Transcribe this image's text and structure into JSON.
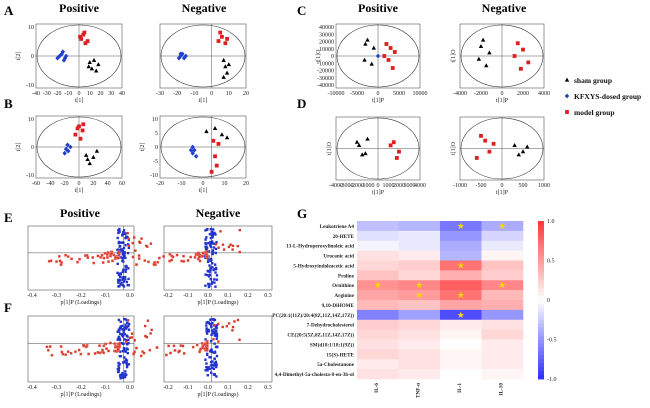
{
  "panel_labels": [
    "A",
    "B",
    "C",
    "D",
    "E",
    "F",
    "G"
  ],
  "group_titles": {
    "positive": "Positive",
    "negative": "Negative"
  },
  "legend": {
    "entries": [
      {
        "label": "sham group",
        "color": "#000000",
        "shape": "triangle"
      },
      {
        "label": "KFXYS-dosed group",
        "color": "#1f3fcc",
        "shape": "diamond"
      },
      {
        "label": "model group",
        "color": "#dd1f1f",
        "shape": "square"
      }
    ]
  },
  "chart_data": [
    {
      "type": "scatter",
      "panel": "A",
      "title": "Positive",
      "xlabel": "t[1]",
      "ylabel": "t[2]",
      "xlim": [
        -40,
        40
      ],
      "ylim": [
        -15,
        15
      ],
      "xticks": [
        "-40",
        "-30",
        "-20",
        "-10",
        "0",
        "10",
        "20",
        "30",
        "40"
      ],
      "yticks": [
        "10",
        "0",
        "-10"
      ],
      "series": [
        {
          "name": "sham group",
          "points": [
            [
              10,
              -3
            ],
            [
              12,
              -6
            ],
            [
              14,
              -2
            ],
            [
              16,
              -7
            ],
            [
              9,
              -5
            ],
            [
              18,
              -4
            ]
          ]
        },
        {
          "name": "KFXYS-dosed group",
          "points": [
            [
              -20,
              -1
            ],
            [
              -18,
              0
            ],
            [
              -16,
              1
            ],
            [
              -14,
              -2
            ],
            [
              -12,
              0
            ],
            [
              -15,
              2
            ],
            [
              -13,
              -1
            ]
          ]
        },
        {
          "name": "model group",
          "points": [
            [
              2,
              8
            ],
            [
              4,
              10
            ],
            [
              6,
              6
            ],
            [
              5,
              11
            ],
            [
              8,
              7
            ],
            [
              1,
              9
            ]
          ]
        }
      ]
    },
    {
      "type": "scatter",
      "panel": "A",
      "title": "Negative",
      "xlabel": "t[1]",
      "ylabel": "",
      "xlim": [
        -30,
        20
      ],
      "ylim": [
        -15,
        15
      ],
      "xticks": [
        "-30",
        "-20",
        "-10",
        "0",
        "10",
        "20"
      ],
      "yticks": [],
      "series": [
        {
          "name": "sham group",
          "points": [
            [
              7,
              -2
            ],
            [
              8,
              -5
            ],
            [
              9,
              -8
            ],
            [
              10,
              -4
            ],
            [
              7,
              -10
            ]
          ]
        },
        {
          "name": "KFXYS-dosed group",
          "points": [
            [
              -19,
              -1
            ],
            [
              -18,
              0
            ],
            [
              -17,
              1
            ],
            [
              -16,
              -1
            ],
            [
              -15,
              0
            ],
            [
              -18,
              1
            ]
          ]
        },
        {
          "name": "model group",
          "points": [
            [
              4,
              7
            ],
            [
              6,
              9
            ],
            [
              8,
              6
            ],
            [
              5,
              11
            ],
            [
              9,
              8
            ]
          ]
        }
      ]
    },
    {
      "type": "scatter",
      "panel": "B",
      "title": "",
      "xlabel": "t[1]",
      "ylabel": "t[2]",
      "xlim": [
        -60,
        60
      ],
      "ylim": [
        -15,
        15
      ],
      "xticks": [
        "-60",
        "-40",
        "-20",
        "0",
        "20",
        "40",
        "60"
      ],
      "yticks": [
        "10",
        "0",
        "-10"
      ],
      "series": [
        {
          "name": "sham group",
          "points": [
            [
              10,
              -4
            ],
            [
              15,
              -8
            ],
            [
              20,
              -5
            ],
            [
              25,
              -2
            ],
            [
              12,
              -6
            ]
          ]
        },
        {
          "name": "KFXYS-dosed group",
          "points": [
            [
              -20,
              -3
            ],
            [
              -18,
              -1
            ],
            [
              -15,
              -2
            ],
            [
              -12,
              0
            ],
            [
              -16,
              1
            ]
          ]
        },
        {
          "name": "model group",
          "points": [
            [
              -5,
              6
            ],
            [
              0,
              10
            ],
            [
              5,
              8
            ],
            [
              2,
              4
            ],
            [
              -2,
              9
            ],
            [
              6,
              11
            ]
          ]
        }
      ]
    },
    {
      "type": "scatter",
      "panel": "B",
      "title": "",
      "xlabel": "t[1]",
      "ylabel": "t[2]",
      "xlim": [
        -30,
        20
      ],
      "ylim": [
        -10,
        10
      ],
      "xticks": [
        "-20",
        "-10",
        "0",
        "10",
        "20"
      ],
      "yticks": [
        "10",
        "5",
        "0",
        "-5",
        "-10"
      ],
      "series": [
        {
          "name": "sham group",
          "points": [
            [
              -3,
              5
            ],
            [
              2,
              6
            ],
            [
              6,
              4
            ],
            [
              9,
              3
            ]
          ]
        },
        {
          "name": "KFXYS-dosed group",
          "points": [
            [
              -12,
              -1
            ],
            [
              -11,
              -2
            ],
            [
              -10,
              -1
            ],
            [
              -9,
              -3
            ],
            [
              -11,
              0
            ]
          ]
        },
        {
          "name": "model group",
          "points": [
            [
              1,
              2
            ],
            [
              2,
              -3
            ],
            [
              3,
              -6
            ],
            [
              0,
              -8
            ],
            [
              4,
              1
            ]
          ]
        }
      ]
    },
    {
      "type": "scatter",
      "panel": "C",
      "title": "Positive",
      "xlabel": "t[1]P",
      "ylabel": "t[1]O",
      "xlim": [
        -10000,
        10000
      ],
      "ylim": [
        -40000,
        40000
      ],
      "xticks": [
        "-10000",
        "-5000",
        "0",
        "5000",
        "10000"
      ],
      "yticks": [
        "40000",
        "30000",
        "20000",
        "10000",
        "0",
        "-10000",
        "-20000",
        "-30000",
        "-40000"
      ],
      "series": [
        {
          "name": "sham group",
          "points": [
            [
              -3000,
              15000
            ],
            [
              -2500,
              20000
            ],
            [
              -1500,
              -10000
            ],
            [
              -3200,
              -5000
            ],
            [
              -1000,
              10000
            ]
          ]
        },
        {
          "name": "KFXYS-dosed group",
          "points": [
            [
              0,
              0
            ]
          ]
        },
        {
          "name": "model group",
          "points": [
            [
              2000,
              15000
            ],
            [
              3000,
              10000
            ],
            [
              4000,
              5000
            ],
            [
              2500,
              -5000
            ],
            [
              3500,
              -15000
            ],
            [
              1500,
              0
            ]
          ]
        }
      ]
    },
    {
      "type": "scatter",
      "panel": "C",
      "title": "Negative",
      "xlabel": "t[1]P",
      "ylabel": "t[1]O",
      "xlim": [
        -4000,
        4000
      ],
      "ylim": [
        -10000,
        10000
      ],
      "xticks": [
        "-4000",
        "-2000",
        "0",
        "2000",
        "4000"
      ],
      "yticks": [],
      "series": [
        {
          "name": "sham group",
          "points": [
            [
              -2000,
              3000
            ],
            [
              -1800,
              5000
            ],
            [
              -1500,
              -3000
            ],
            [
              -1200,
              1000
            ],
            [
              -2200,
              -1000
            ]
          ]
        },
        {
          "name": "model group",
          "points": [
            [
              1500,
              4000
            ],
            [
              2000,
              2000
            ],
            [
              2500,
              -2000
            ],
            [
              1800,
              -4000
            ],
            [
              1200,
              0
            ]
          ]
        }
      ]
    },
    {
      "type": "scatter",
      "panel": "D",
      "title": "",
      "xlabel": "t[1]P",
      "ylabel": "t[1]O",
      "xlim": [
        -4000,
        4000
      ],
      "ylim": [
        -5000,
        5000
      ],
      "xticks": [
        "-4000",
        "-3000",
        "-2000",
        "-1000",
        "0",
        "1000",
        "2000",
        "3000",
        "4000"
      ],
      "yticks": [],
      "series": [
        {
          "name": "sham group",
          "points": [
            [
              -2000,
              1000
            ],
            [
              -1500,
              -1000
            ],
            [
              -1800,
              500
            ],
            [
              -1200,
              -800
            ],
            [
              -1000,
              1500
            ]
          ]
        },
        {
          "name": "model group",
          "points": [
            [
              1500,
              1000
            ],
            [
              2000,
              -500
            ],
            [
              1200,
              500
            ],
            [
              1800,
              -1500
            ]
          ]
        }
      ]
    },
    {
      "type": "scatter",
      "panel": "D",
      "title": "",
      "xlabel": "t[1]P",
      "ylabel": "t[1]O",
      "xlim": [
        -1000,
        1000
      ],
      "ylim": [
        -2000,
        2000
      ],
      "xticks": [
        "-1000",
        "-500",
        "0",
        "500",
        "1000"
      ],
      "yticks": [],
      "series": [
        {
          "name": "sham group",
          "points": [
            [
              300,
              200
            ],
            [
              500,
              -200
            ],
            [
              600,
              100
            ],
            [
              400,
              -400
            ]
          ]
        },
        {
          "name": "model group",
          "points": [
            [
              -500,
              800
            ],
            [
              -400,
              500
            ],
            [
              -300,
              -200
            ],
            [
              -600,
              -600
            ],
            [
              -200,
              300
            ]
          ]
        }
      ]
    },
    {
      "type": "scatter",
      "panel": "E",
      "title": "Positive",
      "xlabel": "p[1]P (Loadings)",
      "ylabel": "",
      "xlim": [
        -0.45,
        0.05
      ],
      "xticks": [
        "-0.4",
        "-0.3",
        "-0.2",
        "-0.1",
        "0.0"
      ]
    },
    {
      "type": "scatter",
      "panel": "E",
      "title": "Negative",
      "xlabel": "p[1]P (Loadings)",
      "ylabel": "",
      "xlim": [
        -0.25,
        0.32
      ],
      "xticks": [
        "-0.2",
        "-0.1",
        "0.0",
        "0.1",
        "0.2",
        "0.3"
      ]
    },
    {
      "type": "scatter",
      "panel": "F",
      "title": "",
      "xlabel": "p[1]P (Loadings)",
      "ylabel": "",
      "xlim": [
        -0.45,
        0.05
      ],
      "xticks": [
        "-0.4",
        "-0.3",
        "-0.2",
        "-0.1",
        "0.0"
      ]
    },
    {
      "type": "scatter",
      "panel": "F",
      "title": "",
      "xlabel": "p[1]P (Loadings)",
      "ylabel": "",
      "xlim": [
        -0.25,
        0.32
      ],
      "xticks": [
        "-0.2",
        "-0.1",
        "0.0",
        "0.1",
        "0.2",
        "0.3"
      ]
    },
    {
      "type": "heatmap",
      "panel": "G",
      "rows": [
        "Leukotriene A4",
        "20-HETE",
        "13-L-Hydroperoxylinoleic acid",
        "Urocanic acid",
        "5-Hydroxyindoleacetic acid",
        "Proline",
        "Ornithine",
        "Arginine",
        "9,10-DiHOME",
        "PC(20:1(11Z)/20:4(8Z,11Z,14Z,17Z))",
        "7-Dehydrocholesterol",
        "CE(20:5(5Z,8Z,11Z,14Z,17Z))",
        "SM(d18:1/18:1(9Z))",
        "15(S)-HETE",
        "5a-Cholestanone",
        "4,4-Dimethyl-5a-cholesta-8-en-3b-ol"
      ],
      "columns": [
        "IL-6",
        "TNF-α",
        "IL-1",
        "IL-10"
      ],
      "values": [
        [
          -0.3,
          -0.35,
          -0.65,
          -0.4
        ],
        [
          -0.15,
          -0.1,
          -0.5,
          -0.2
        ],
        [
          -0.05,
          -0.1,
          -0.4,
          -0.1
        ],
        [
          0.15,
          0.1,
          -0.35,
          0.05
        ],
        [
          0.2,
          0.25,
          0.7,
          0.3
        ],
        [
          0.3,
          0.2,
          0.4,
          0.25
        ],
        [
          0.55,
          0.6,
          0.8,
          0.6
        ],
        [
          0.45,
          0.5,
          0.7,
          0.35
        ],
        [
          0.35,
          0.3,
          0.45,
          0.4
        ],
        [
          -0.6,
          -0.45,
          -0.85,
          -0.5
        ],
        [
          0.25,
          0.2,
          0.1,
          0.15
        ],
        [
          0.2,
          0.15,
          0.05,
          0.2
        ],
        [
          0.15,
          0.1,
          0.0,
          0.1
        ],
        [
          0.2,
          0.15,
          0.05,
          0.1
        ],
        [
          0.1,
          0.15,
          0.05,
          0.1
        ],
        [
          0.15,
          0.1,
          0.0,
          0.05
        ]
      ],
      "stars": [
        [
          0,
          2
        ],
        [
          0,
          3
        ],
        [
          4,
          2
        ],
        [
          6,
          0
        ],
        [
          6,
          1
        ],
        [
          6,
          3
        ],
        [
          7,
          1
        ],
        [
          7,
          2
        ],
        [
          9,
          2
        ]
      ],
      "scale": {
        "min": -1.0,
        "max": 1.0,
        "ticks": [
          "1.0",
          "0.5",
          "0",
          "-0.5",
          "-1.0"
        ]
      }
    }
  ]
}
